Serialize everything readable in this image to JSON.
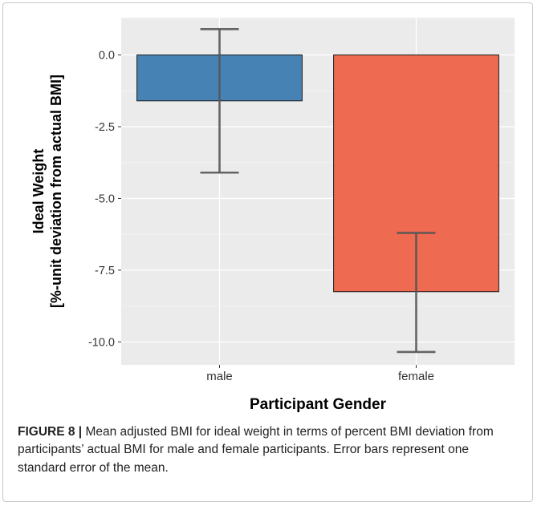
{
  "chart_data": {
    "type": "bar",
    "categories": [
      "male",
      "female"
    ],
    "values": [
      -1.6,
      -8.25
    ],
    "error_bars": [
      {
        "low": -4.1,
        "high": 0.9
      },
      {
        "low": -10.35,
        "high": -6.2
      }
    ],
    "colors": [
      "#4682b4",
      "#ee6a50"
    ],
    "panel_background": "#ebebeb",
    "xlabel": "Participant Gender",
    "ylabel_line1": "Ideal Weight",
    "ylabel_line2": "[%-unit deviation from actual BMI]",
    "ylim": [
      -10.8,
      1.3
    ],
    "yticks": [
      0.0,
      -2.5,
      -5.0,
      -7.5,
      -10.0
    ],
    "ytick_labels": [
      "0.0",
      "-2.5",
      "-5.0",
      "-7.5",
      "-10.0"
    ],
    "grid": true
  },
  "caption": {
    "label": "FIGURE 8 |",
    "text": " Mean adjusted BMI for ideal weight in terms of percent BMI deviation from participants’ actual BMI for male and female participants. Error bars represent one standard error of the mean."
  }
}
